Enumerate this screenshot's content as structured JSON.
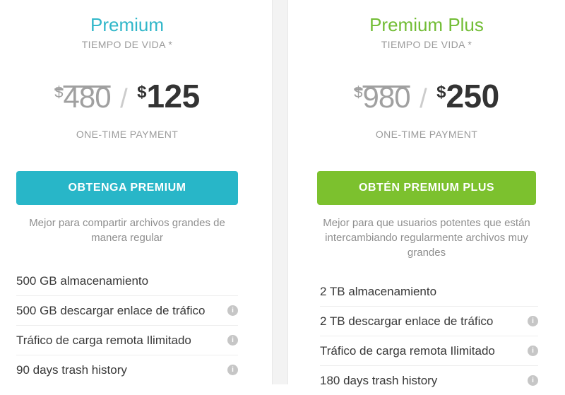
{
  "icons": {
    "info_glyph": "i"
  },
  "cards": [
    {
      "title": "Premium",
      "title_color": "#31b7c9",
      "subtitle": "TIEMPO DE VIDA *",
      "old_price": {
        "currency": "$",
        "amount": "480"
      },
      "separator": "/",
      "new_price": {
        "currency": "$",
        "amount": "125"
      },
      "payment_note": "ONE-TIME PAYMENT",
      "button": {
        "label": "OBTENGA PREMIUM",
        "color": "#28b6c8"
      },
      "description": "Mejor para compartir archivos grandes de manera regular",
      "features": [
        {
          "label": "500 GB almacenamiento",
          "info": false
        },
        {
          "label": "500 GB descargar enlace de tráfico",
          "info": true
        },
        {
          "label": "Tráfico de carga remota Ilimitado",
          "info": true
        },
        {
          "label": "90 days trash history",
          "info": true
        }
      ]
    },
    {
      "title": "Premium Plus",
      "title_color": "#72bd35",
      "subtitle": "TIEMPO DE VIDA *",
      "old_price": {
        "currency": "$",
        "amount": "980"
      },
      "separator": "/",
      "new_price": {
        "currency": "$",
        "amount": "250"
      },
      "payment_note": "ONE-TIME PAYMENT",
      "button": {
        "label": "OBTÉN PREMIUM PLUS",
        "color": "#7cc12e"
      },
      "description": "Mejor para que usuarios potentes que están intercambiando regularmente archivos muy grandes",
      "features": [
        {
          "label": "2 TB almacenamiento",
          "info": false
        },
        {
          "label": "2 TB descargar enlace de tráfico",
          "info": true
        },
        {
          "label": "Tráfico de carga remota Ilimitado",
          "info": true
        },
        {
          "label": "180 days trash history",
          "info": true
        }
      ]
    }
  ]
}
